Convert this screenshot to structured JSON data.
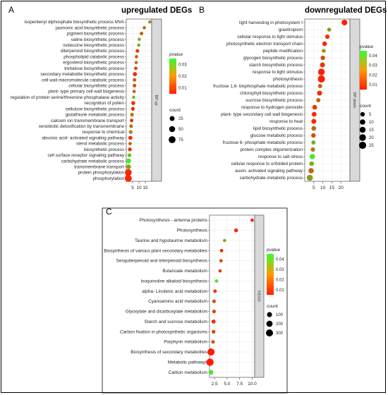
{
  "chart_data": [
    {
      "panel": "A",
      "type": "scatter",
      "title": "upregulated DEGs",
      "facet_label": "BP up",
      "xlim": [
        0,
        20
      ],
      "xticks": [
        5,
        10,
        15
      ],
      "pvalue_ticks": [
        "0.03",
        "0.02",
        "0.01"
      ],
      "pvalue_range": [
        0.001,
        0.035
      ],
      "count_ticks": [
        25,
        50,
        75
      ],
      "count_range": [
        1,
        90
      ],
      "legend_color_title": "pvalue",
      "legend_size_title": "count",
      "terms": [
        {
          "label": "isopentenyl diphosphate biosynthetic process MVA",
          "x": 18.5,
          "p": 0.018,
          "count": 3
        },
        {
          "label": "jasmonic acid biosynthetic process",
          "x": 14.2,
          "p": 0.013,
          "count": 4
        },
        {
          "label": "pigment biosynthetic process",
          "x": 12.0,
          "p": 0.012,
          "count": 6
        },
        {
          "label": "valine biosynthetic process",
          "x": 10.2,
          "p": 0.022,
          "count": 3
        },
        {
          "label": "isoleucine biosynthetic process",
          "x": 9.8,
          "p": 0.02,
          "count": 3
        },
        {
          "label": "diterpenoid biosynthetic process",
          "x": 8.8,
          "p": 0.004,
          "count": 6
        },
        {
          "label": "phospholipid catabolic process",
          "x": 8.0,
          "p": 0.01,
          "count": 4
        },
        {
          "label": "ergosterol biosynthetic process",
          "x": 7.8,
          "p": 0.012,
          "count": 3
        },
        {
          "label": "trehalose biosynthetic process",
          "x": 7.5,
          "p": 0.006,
          "count": 5
        },
        {
          "label": "secondary metabolite biosynthetic process",
          "x": 6.8,
          "p": 0.002,
          "count": 12
        },
        {
          "label": "cell wall macromolecule catabolic process",
          "x": 6.5,
          "p": 0.01,
          "count": 6
        },
        {
          "label": "cellular biosynthetic process",
          "x": 6.5,
          "p": 0.008,
          "count": 6
        },
        {
          "label": "plant- type primary cell wall biogenesis",
          "x": 6.2,
          "p": 0.012,
          "count": 4
        },
        {
          "label": "regulation of protein serine/threonine phosphatase activity",
          "x": 5.8,
          "p": 0.025,
          "count": 3
        },
        {
          "label": "recognition of pollen",
          "x": 5.5,
          "p": 0.004,
          "count": 10
        },
        {
          "label": "cellulose biosynthetic process",
          "x": 5.2,
          "p": 0.003,
          "count": 8
        },
        {
          "label": "glutathione metabolic process",
          "x": 4.5,
          "p": 0.015,
          "count": 8
        },
        {
          "label": "calcium ion transmembrane transport",
          "x": 4.2,
          "p": 0.003,
          "count": 6
        },
        {
          "label": "xenobiotic detoxification by transmembrane",
          "x": 3.8,
          "p": 0.012,
          "count": 6
        },
        {
          "label": "response to chemical",
          "x": 3.5,
          "p": 0.018,
          "count": 8
        },
        {
          "label": "abscisic acid- activated signaling pathway",
          "x": 3.2,
          "p": 0.003,
          "count": 10
        },
        {
          "label": "sterol metabolic process",
          "x": 3.0,
          "p": 0.01,
          "count": 4
        },
        {
          "label": "biosynthetic process",
          "x": 2.8,
          "p": 0.008,
          "count": 10
        },
        {
          "label": "cell surface receptor signaling pathway",
          "x": 2.5,
          "p": 0.025,
          "count": 8
        },
        {
          "label": "carbohydrate metabolic process",
          "x": 1.8,
          "p": 0.032,
          "count": 25
        },
        {
          "label": "transmembrane transport",
          "x": 1.8,
          "p": 0.02,
          "count": 22
        },
        {
          "label": "protein phosphorylation",
          "x": 1.6,
          "p": 0.003,
          "count": 70
        },
        {
          "label": "phosphorylation",
          "x": 1.6,
          "p": 0.002,
          "count": 75
        }
      ]
    },
    {
      "panel": "B",
      "type": "scatter",
      "title": "downregulated DEGs",
      "facet_label": "BP down",
      "xlim": [
        0,
        25
      ],
      "xticks": [
        5,
        10,
        15,
        20
      ],
      "pvalue_ticks": [
        "0.04",
        "0.03",
        "0.02",
        "0.01"
      ],
      "pvalue_range": [
        0.001,
        0.045
      ],
      "count_ticks": [
        5,
        10,
        15,
        20,
        25
      ],
      "count_range": [
        1,
        27
      ],
      "legend_color_title": "pvalue",
      "legend_size_title": "count",
      "terms": [
        {
          "label": "light harvesting in photosystem I",
          "x": 22.0,
          "p": 0.001,
          "count": 12
        },
        {
          "label": "gravitropism",
          "x": 13.5,
          "p": 0.025,
          "count": 3
        },
        {
          "label": "cellular response to light stimulus",
          "x": 12.5,
          "p": 0.006,
          "count": 5
        },
        {
          "label": "photosynthetic electron transport chain",
          "x": 11.0,
          "p": 0.004,
          "count": 6
        },
        {
          "label": "peptide modification",
          "x": 10.5,
          "p": 0.025,
          "count": 3
        },
        {
          "label": "glycogen biosynthetic process",
          "x": 10.0,
          "p": 0.01,
          "count": 5
        },
        {
          "label": "starch biosynthetic process",
          "x": 9.8,
          "p": 0.006,
          "count": 8
        },
        {
          "label": "response to light stimulus",
          "x": 9.2,
          "p": 0.002,
          "count": 20
        },
        {
          "label": "photosynthesis",
          "x": 9.2,
          "p": 0.001,
          "count": 25
        },
        {
          "label": "fructose 1,6- bisphosphate metabolic process",
          "x": 8.5,
          "p": 0.015,
          "count": 4
        },
        {
          "label": "chlorophyll biosynthetic process",
          "x": 8.2,
          "p": 0.004,
          "count": 8
        },
        {
          "label": "sucrose biosynthetic process",
          "x": 7.5,
          "p": 0.015,
          "count": 4
        },
        {
          "label": "response to hydrogen peroxide",
          "x": 5.5,
          "p": 0.005,
          "count": 6
        },
        {
          "label": "plant- type secondary cell wall biogenesis",
          "x": 5.2,
          "p": 0.004,
          "count": 7
        },
        {
          "label": "response to heat",
          "x": 5.0,
          "p": 0.003,
          "count": 8
        },
        {
          "label": "lipid biosynthetic process",
          "x": 5.0,
          "p": 0.015,
          "count": 6
        },
        {
          "label": "glucose metabolic process",
          "x": 4.8,
          "p": 0.01,
          "count": 5
        },
        {
          "label": "fructose 6- phosphate metabolic process",
          "x": 4.8,
          "p": 0.03,
          "count": 4
        },
        {
          "label": "protein complex oligomerization",
          "x": 4.5,
          "p": 0.02,
          "count": 5
        },
        {
          "label": "response to salt stress",
          "x": 4.2,
          "p": 0.04,
          "count": 10
        },
        {
          "label": "cellular response to unfolded protein",
          "x": 3.8,
          "p": 0.03,
          "count": 6
        },
        {
          "label": "auxin- activated signaling pathway",
          "x": 3.5,
          "p": 0.015,
          "count": 10
        },
        {
          "label": "carbohydrate metabolic process",
          "x": 2.8,
          "p": 0.025,
          "count": 15
        }
      ]
    },
    {
      "panel": "C",
      "type": "scatter",
      "title": "",
      "facet_label": "KEGG",
      "xlim": [
        1.5,
        10.5
      ],
      "xticks": [
        "2.5",
        "5.0",
        "7.5",
        "10.0"
      ],
      "xtick_values": [
        2.5,
        5.0,
        7.5,
        10.0
      ],
      "pvalue_ticks": [
        "0.04",
        "0.03",
        "0.02",
        "0.01"
      ],
      "pvalue_range": [
        0.001,
        0.045
      ],
      "count_ticks": [
        100,
        200,
        300
      ],
      "count_range": [
        1,
        330
      ],
      "legend_color_title": "pvalue",
      "legend_size_title": "count",
      "terms": [
        {
          "label": "Photosynthesis -  antenna proteins",
          "x": 10.0,
          "p": 0.001,
          "count": 15
        },
        {
          "label": "Photosynthesis",
          "x": 6.8,
          "p": 0.001,
          "count": 30
        },
        {
          "label": "Taurine and hypotaurine metabolism",
          "x": 4.5,
          "p": 0.025,
          "count": 10
        },
        {
          "label": "Biosynthesis of various plant secondary metabolites",
          "x": 3.9,
          "p": 0.005,
          "count": 20
        },
        {
          "label": "Sesquiterpenoid and triterpenoid biosynthesis",
          "x": 3.8,
          "p": 0.008,
          "count": 15
        },
        {
          "label": "Butanoate metabolism",
          "x": 3.6,
          "p": 0.008,
          "count": 15
        },
        {
          "label": "Isoquinoline alkaloid biosynthesis",
          "x": 2.9,
          "p": 0.04,
          "count": 15
        },
        {
          "label": "alpha- Linolenic acid metabolism",
          "x": 2.6,
          "p": 0.006,
          "count": 20
        },
        {
          "label": "Cyanoamino acid metabolism",
          "x": 2.4,
          "p": 0.012,
          "count": 25
        },
        {
          "label": "Glyoxylate and dicarboxylate metabolism",
          "x": 2.4,
          "p": 0.008,
          "count": 25
        },
        {
          "label": "Starch and sucrose metabolism",
          "x": 2.3,
          "p": 0.005,
          "count": 45
        },
        {
          "label": "Carbon fixation in photosynthetic organisms",
          "x": 2.3,
          "p": 0.01,
          "count": 30
        },
        {
          "label": "Porphyrin metabolism",
          "x": 2.2,
          "p": 0.012,
          "count": 25
        },
        {
          "label": "Biosynthesis of secondary metabolites",
          "x": 1.8,
          "p": 0.001,
          "count": 300
        },
        {
          "label": "Metabolic pathways",
          "x": 1.6,
          "p": 0.001,
          "count": 330
        },
        {
          "label": "Carbon metabolism",
          "x": 1.8,
          "p": 0.04,
          "count": 80
        }
      ]
    }
  ],
  "colors": {
    "low_p": "#ff1e00",
    "high_p": "#33ff33",
    "grid": "#ebebeb",
    "strip": "#d9d9d9"
  }
}
